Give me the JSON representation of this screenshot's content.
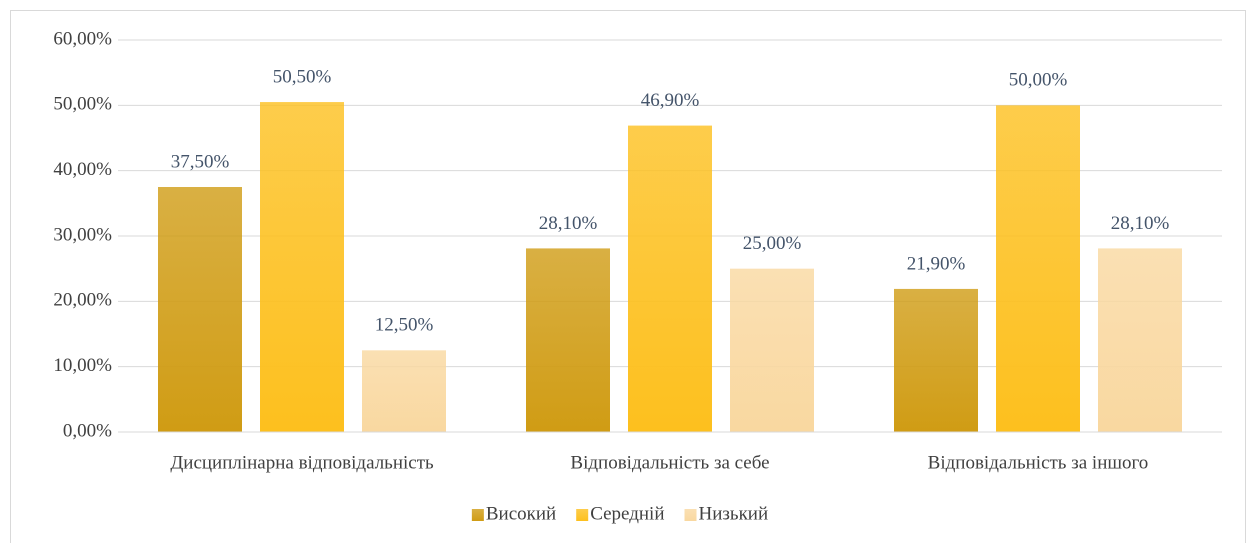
{
  "chart_data": {
    "type": "bar",
    "categories": [
      "Дисциплінарна відповідальність",
      "Відповідальність за себе",
      "Відповідальність за іншого"
    ],
    "series": [
      {
        "name": "Високий",
        "color": "#d09c14",
        "values": [
          37.5,
          28.1,
          21.9
        ],
        "value_labels": [
          "37,50%",
          "28,10%",
          "21,90%"
        ]
      },
      {
        "name": "Середній",
        "color": "#fdc01e",
        "values": [
          50.5,
          46.9,
          50.0
        ],
        "value_labels": [
          "50,50%",
          "46,90%",
          "50,00%"
        ]
      },
      {
        "name": "Низький",
        "color": "#f9d8a0",
        "values": [
          12.5,
          25.0,
          28.1
        ],
        "value_labels": [
          "12,50%",
          "25,00%",
          "28,10%"
        ]
      }
    ],
    "ylim": [
      0,
      60
    ],
    "yticks": [
      {
        "value": 0,
        "label": "0,00%"
      },
      {
        "value": 10,
        "label": "10,00%"
      },
      {
        "value": 20,
        "label": "20,00%"
      },
      {
        "value": 30,
        "label": "30,00%"
      },
      {
        "value": 40,
        "label": "40,00%"
      },
      {
        "value": 50,
        "label": "50,00%"
      },
      {
        "value": 60,
        "label": "60,00%"
      }
    ],
    "grid": true,
    "legend": "bottom"
  }
}
